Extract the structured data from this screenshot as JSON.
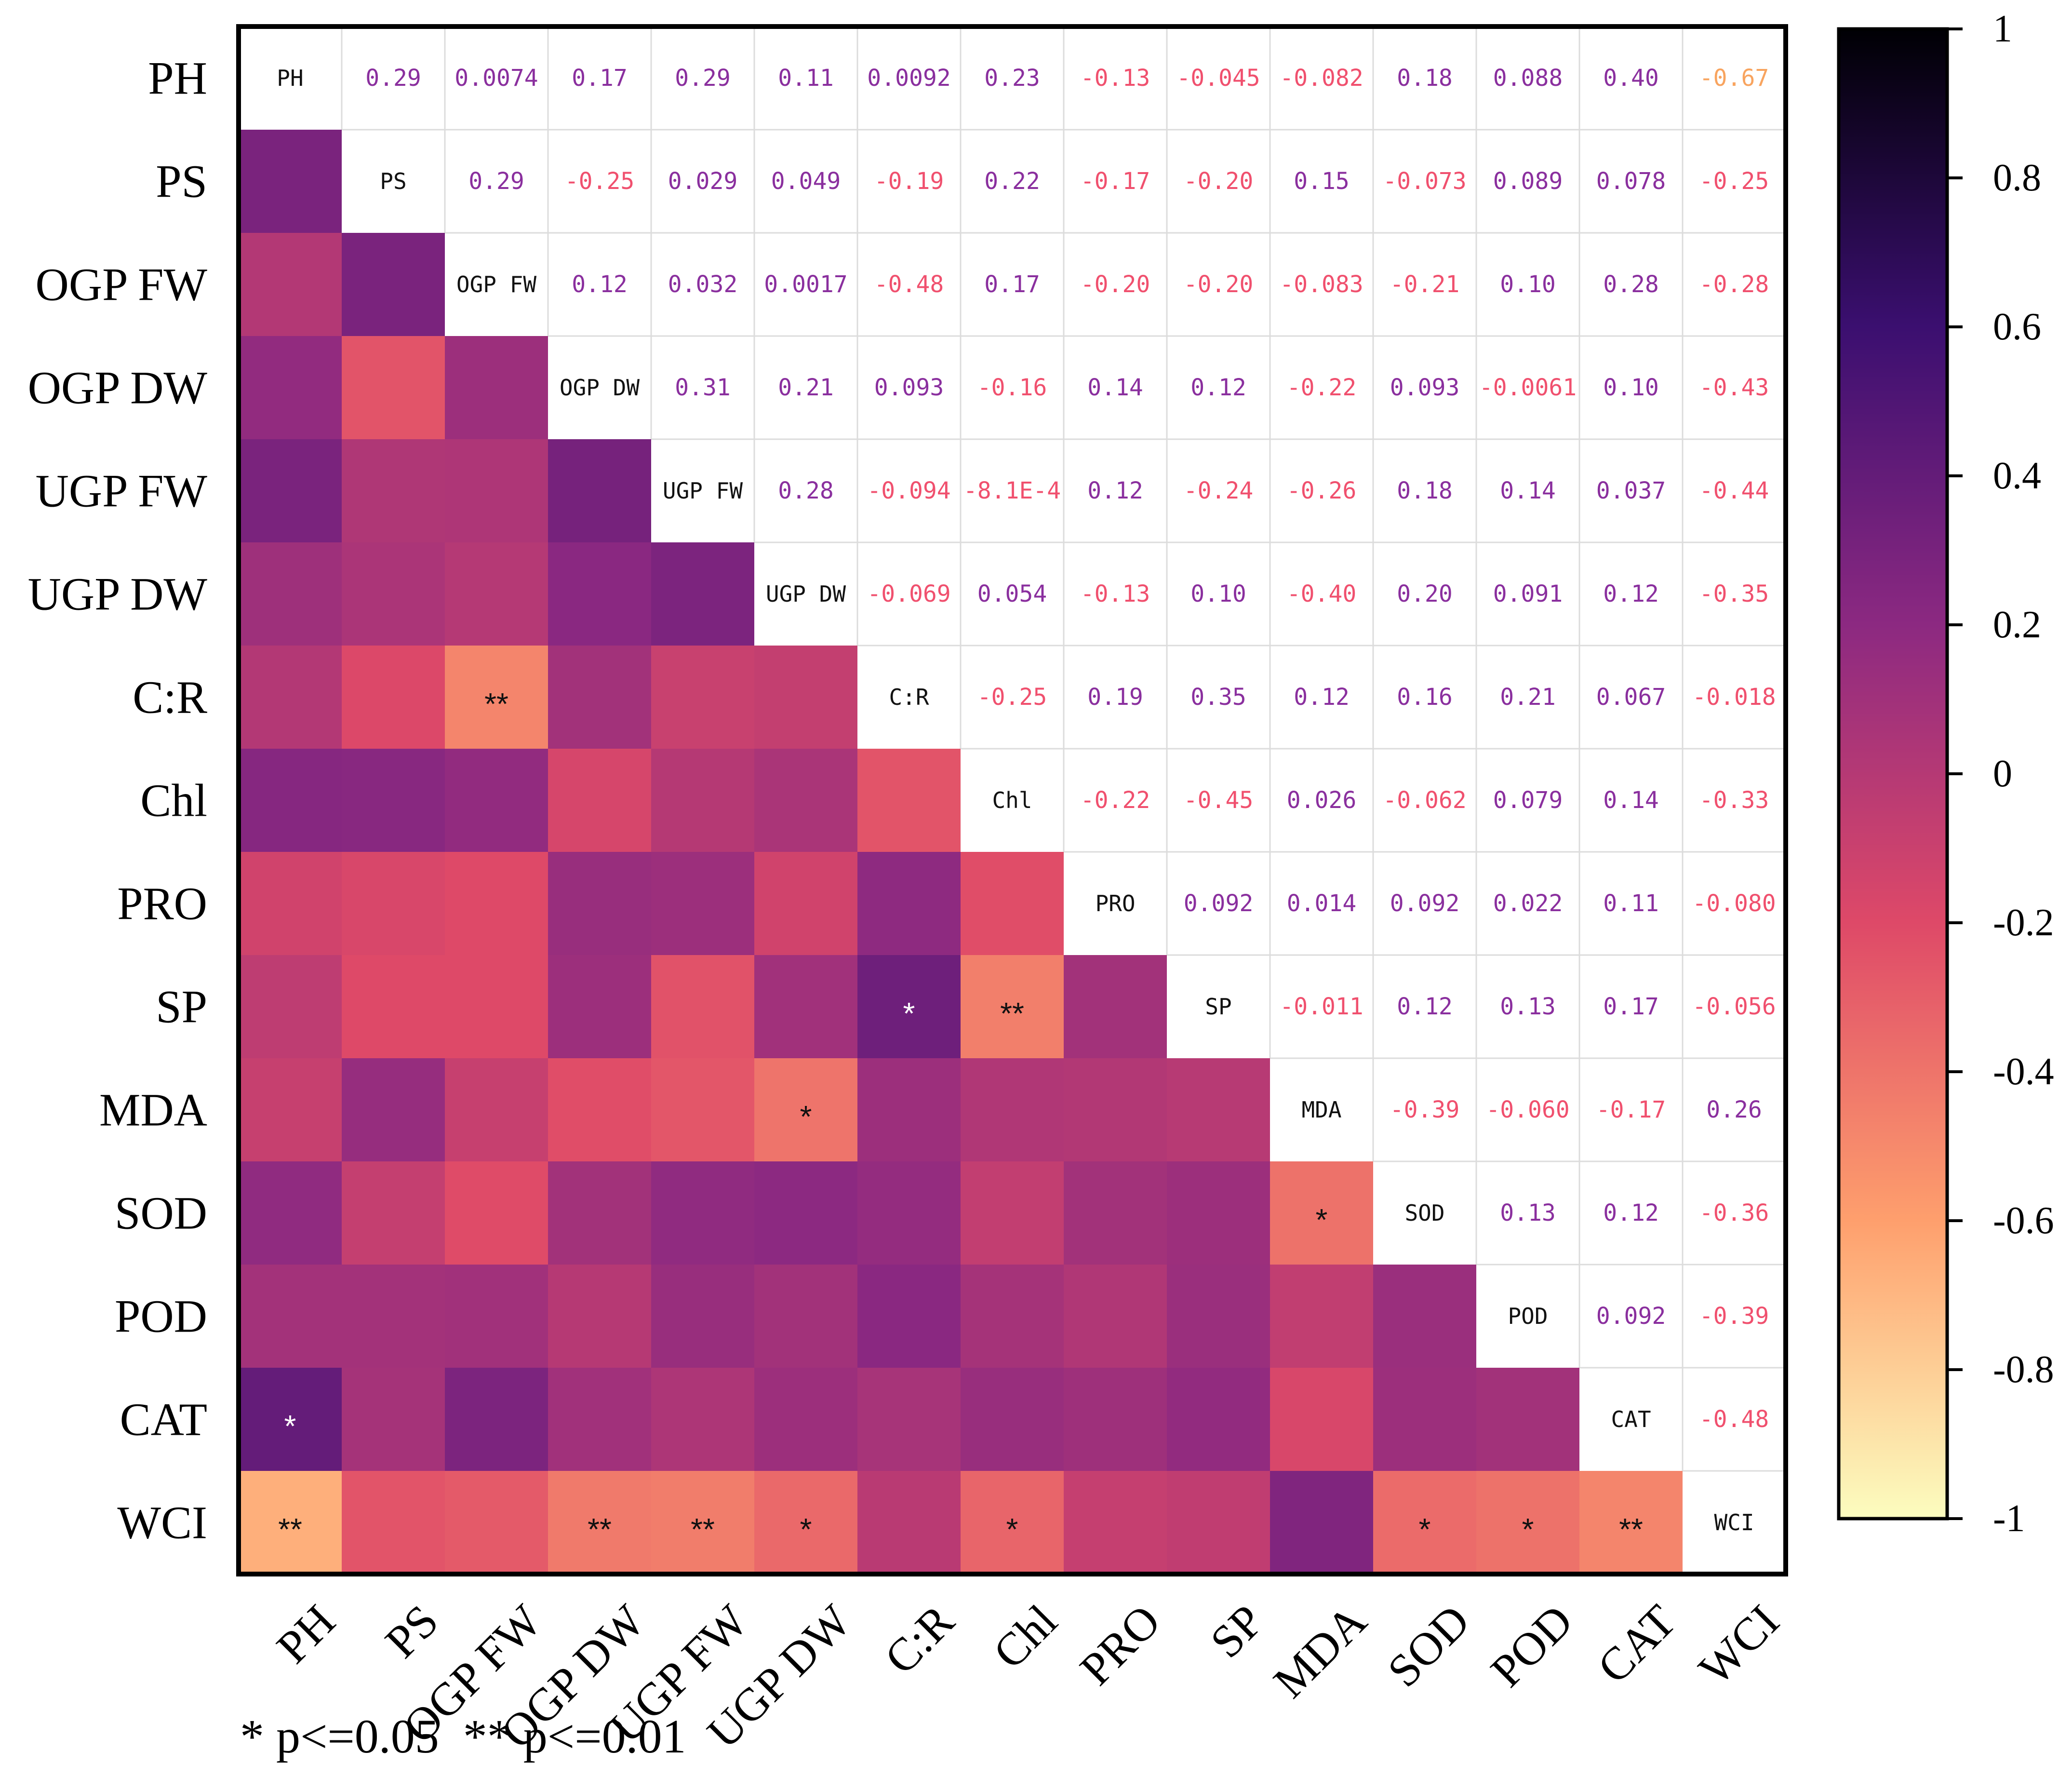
{
  "chart_data": {
    "type": "heatmap",
    "title": "",
    "variables": [
      "PH",
      "PS",
      "OGP FW",
      "OGP DW",
      "UGP FW",
      "UGP DW",
      "C:R",
      "Chl",
      "PRO",
      "SP",
      "MDA",
      "SOD",
      "POD",
      "CAT",
      "WCI"
    ],
    "upper_triangle_labels": [
      [
        "PH",
        "0.29",
        "0.0074",
        "0.17",
        "0.29",
        "0.11",
        "0.0092",
        "0.23",
        "-0.13",
        "-0.045",
        "-0.082",
        "0.18",
        "0.088",
        "0.40",
        "-0.67"
      ],
      [
        "",
        "PS",
        "0.29",
        "-0.25",
        "0.029",
        "0.049",
        "-0.19",
        "0.22",
        "-0.17",
        "-0.20",
        "0.15",
        "-0.073",
        "0.089",
        "0.078",
        "-0.25"
      ],
      [
        "",
        "",
        "OGP FW",
        "0.12",
        "0.032",
        "0.0017",
        "-0.48",
        "0.17",
        "-0.20",
        "-0.20",
        "-0.083",
        "-0.21",
        "0.10",
        "0.28",
        "-0.28"
      ],
      [
        "",
        "",
        "",
        "OGP DW",
        "0.31",
        "0.21",
        "0.093",
        "-0.16",
        "0.14",
        "0.12",
        "-0.22",
        "0.093",
        "-0.0061",
        "0.10",
        "-0.43"
      ],
      [
        "",
        "",
        "",
        "",
        "UGP FW",
        "0.28",
        "-0.094",
        "-8.1E-4",
        "0.12",
        "-0.24",
        "-0.26",
        "0.18",
        "0.14",
        "0.037",
        "-0.44"
      ],
      [
        "",
        "",
        "",
        "",
        "",
        "UGP DW",
        "-0.069",
        "0.054",
        "-0.13",
        "0.10",
        "-0.40",
        "0.20",
        "0.091",
        "0.12",
        "-0.35"
      ],
      [
        "",
        "",
        "",
        "",
        "",
        "",
        "C:R",
        "-0.25",
        "0.19",
        "0.35",
        "0.12",
        "0.16",
        "0.21",
        "0.067",
        "-0.018"
      ],
      [
        "",
        "",
        "",
        "",
        "",
        "",
        "",
        "Chl",
        "-0.22",
        "-0.45",
        "0.026",
        "-0.062",
        "0.079",
        "0.14",
        "-0.33"
      ],
      [
        "",
        "",
        "",
        "",
        "",
        "",
        "",
        "",
        "PRO",
        "0.092",
        "0.014",
        "0.092",
        "0.022",
        "0.11",
        "-0.080"
      ],
      [
        "",
        "",
        "",
        "",
        "",
        "",
        "",
        "",
        "",
        "SP",
        "-0.011",
        "0.12",
        "0.13",
        "0.17",
        "-0.056"
      ],
      [
        "",
        "",
        "",
        "",
        "",
        "",
        "",
        "",
        "",
        "",
        "MDA",
        "-0.39",
        "-0.060",
        "-0.17",
        "0.26"
      ],
      [
        "",
        "",
        "",
        "",
        "",
        "",
        "",
        "",
        "",
        "",
        "",
        "SOD",
        "0.13",
        "0.12",
        "-0.36"
      ],
      [
        "",
        "",
        "",
        "",
        "",
        "",
        "",
        "",
        "",
        "",
        "",
        "",
        "POD",
        "0.092",
        "-0.39"
      ],
      [
        "",
        "",
        "",
        "",
        "",
        "",
        "",
        "",
        "",
        "",
        "",
        "",
        "",
        "CAT",
        "-0.48"
      ],
      [
        "",
        "",
        "",
        "",
        "",
        "",
        "",
        "",
        "",
        "",
        "",
        "",
        "",
        "",
        "WCI"
      ]
    ],
    "significance": [
      [
        "",
        "",
        "",
        "",
        "",
        "",
        "",
        "",
        "",
        "",
        "",
        "",
        "",
        "*",
        "**"
      ],
      [
        "",
        "",
        "",
        "",
        "",
        "",
        "",
        "",
        "",
        "",
        "",
        "",
        "",
        "",
        ""
      ],
      [
        "",
        "",
        "",
        "",
        "",
        "",
        "**",
        "",
        "",
        "",
        "",
        "",
        "",
        "",
        ""
      ],
      [
        "",
        "",
        "",
        "",
        "",
        "",
        "",
        "",
        "",
        "",
        "",
        "",
        "",
        "",
        "**"
      ],
      [
        "",
        "",
        "",
        "",
        "",
        "",
        "",
        "",
        "",
        "",
        "",
        "",
        "",
        "",
        "**"
      ],
      [
        "",
        "",
        "",
        "",
        "",
        "",
        "",
        "",
        "",
        "",
        "*",
        "",
        "",
        "",
        "*"
      ],
      [
        "",
        "",
        "",
        "",
        "",
        "",
        "",
        "",
        "",
        "*",
        "",
        "",
        "",
        "",
        ""
      ],
      [
        "",
        "",
        "",
        "",
        "",
        "",
        "",
        "",
        "",
        "**",
        "",
        "",
        "",
        "",
        "*"
      ],
      [
        "",
        "",
        "",
        "",
        "",
        "",
        "",
        "",
        "",
        "",
        "",
        "",
        "",
        "",
        ""
      ],
      [
        "",
        "",
        "",
        "",
        "",
        "",
        "",
        "",
        "",
        "",
        "",
        "",
        "",
        "",
        ""
      ],
      [
        "",
        "",
        "",
        "",
        "",
        "",
        "",
        "",
        "",
        "",
        "",
        "*",
        "",
        "",
        ""
      ],
      [
        "",
        "",
        "",
        "",
        "",
        "",
        "",
        "",
        "",
        "",
        "",
        "",
        "",
        "",
        "*"
      ],
      [
        "",
        "",
        "",
        "",
        "",
        "",
        "",
        "",
        "",
        "",
        "",
        "",
        "",
        "",
        "*"
      ],
      [
        "",
        "",
        "",
        "",
        "",
        "",
        "",
        "",
        "",
        "",
        "",
        "",
        "",
        "",
        "**"
      ],
      [
        "",
        "",
        "",
        "",
        "",
        "",
        "",
        "",
        "",
        "",
        "",
        "",
        "",
        "",
        ""
      ]
    ],
    "colorbar": {
      "min": -1,
      "max": 1,
      "ticks": [
        "1",
        "0.8",
        "0.6",
        "0.4",
        "0.2",
        "0",
        "-0.2",
        "-0.4",
        "-0.6",
        "-0.8",
        "-1"
      ],
      "colors": [
        "#000004",
        "#3b0f70",
        "#8c2981",
        "#de4968",
        "#fe9f6d",
        "#fcfdbf"
      ]
    },
    "legend_note": "* p<=0.05  ** p<=0.01",
    "text_colors": {
      "positive": "#8a2f9e",
      "negative": "#f0506e",
      "strong_negative": "#f8a45f"
    }
  }
}
